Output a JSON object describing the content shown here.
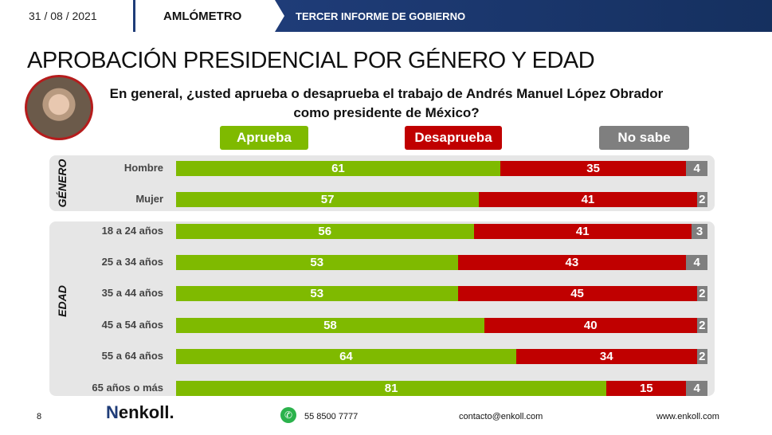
{
  "header": {
    "date": "31 / 08 / 2021",
    "section": "AMLÓMETRO",
    "band": "TERCER INFORME DE GOBIERNO"
  },
  "title": "APROBACIÓN PRESIDENCIAL POR GÉNERO Y EDAD",
  "question": "En general, ¿usted aprueba o desaprueba el trabajo de Andrés Manuel López Obrador como presidente de México?",
  "footer": {
    "page": "8",
    "logo": "enkoll.",
    "phone": "55 8500 7777",
    "email": "contacto@enkoll.com",
    "web": "www.enkoll.com"
  },
  "chart_data": {
    "type": "bar",
    "orientation": "horizontal",
    "stacked": true,
    "xlim": [
      0,
      100
    ],
    "legend": {
      "placement": "top",
      "entries": [
        "Aprueba",
        "Desaprueba",
        "No sabe"
      ]
    },
    "colors": {
      "Aprueba": "#7fba00",
      "Desaprueba": "#c00000",
      "No sabe": "#7f7f7f"
    },
    "groups": [
      {
        "label": "GÉNERO",
        "categories": [
          "Hombre",
          "Mujer"
        ]
      },
      {
        "label": "EDAD",
        "categories": [
          "18 a 24 años",
          "25 a 34 años",
          "35 a 44 años",
          "45 a 54 años",
          "55 a 64 años",
          "65 años o más"
        ]
      }
    ],
    "categories": [
      "Hombre",
      "Mujer",
      "18 a 24 años",
      "25 a 34 años",
      "35 a 44 años",
      "45 a 54 años",
      "55 a 64 años",
      "65 años o más"
    ],
    "series": [
      {
        "name": "Aprueba",
        "values": [
          61,
          57,
          56,
          53,
          53,
          58,
          64,
          81
        ]
      },
      {
        "name": "Desaprueba",
        "values": [
          35,
          41,
          41,
          43,
          45,
          40,
          34,
          15
        ]
      },
      {
        "name": "No sabe",
        "values": [
          4,
          2,
          3,
          4,
          2,
          2,
          2,
          4
        ]
      }
    ]
  }
}
